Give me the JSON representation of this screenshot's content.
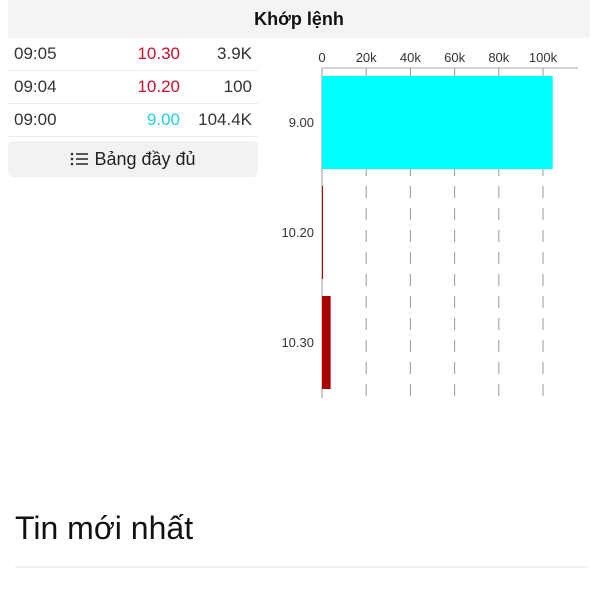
{
  "header": {
    "title": "Khớp lệnh"
  },
  "trades": [
    {
      "time": "09:05",
      "price": "10.30",
      "volume": "3.9K",
      "color": "#c8102e"
    },
    {
      "time": "09:04",
      "price": "10.20",
      "volume": "100",
      "color": "#c8102e"
    },
    {
      "time": "09:00",
      "price": "9.00",
      "volume": "104.4K",
      "color": "#20d0e0"
    }
  ],
  "full_table_button": {
    "label": "Bảng đầy đủ",
    "icon": "list-icon"
  },
  "chart_data": {
    "type": "bar",
    "orientation": "horizontal",
    "categories": [
      "9.00",
      "10.20",
      "10.30"
    ],
    "values": [
      104400,
      100,
      3900
    ],
    "colors": [
      "#00ffff",
      "#aa0000",
      "#aa0000"
    ],
    "xlim": [
      0,
      110000
    ],
    "xticks": [
      0,
      20000,
      40000,
      60000,
      80000,
      100000
    ],
    "xtick_labels": [
      "0",
      "20k",
      "40k",
      "60k",
      "80k",
      "100k"
    ],
    "xaxis_position": "top",
    "grid": "dashed vertical"
  },
  "news": {
    "title": "Tin mới nhất"
  }
}
